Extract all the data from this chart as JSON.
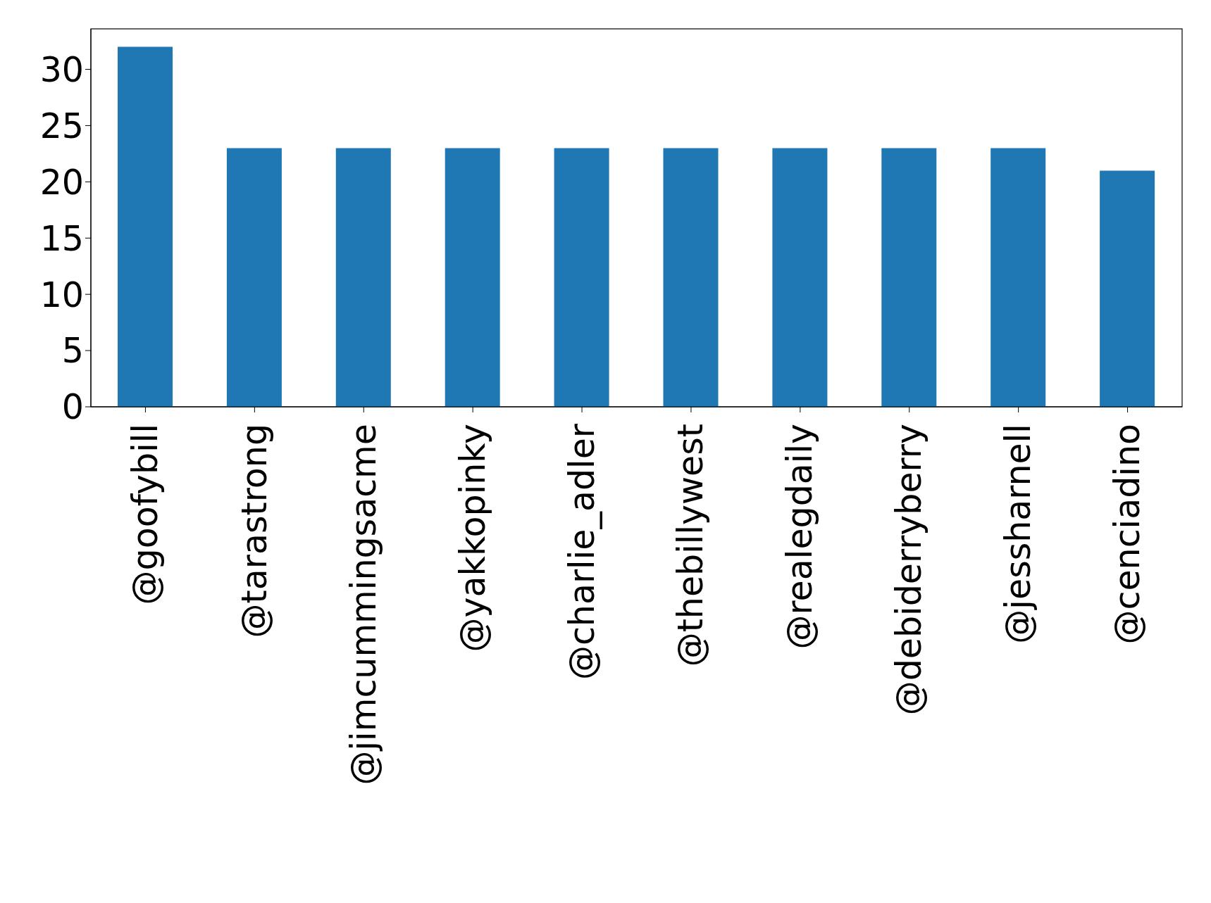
{
  "chart_data": {
    "type": "bar",
    "categories": [
      "@goofybill",
      "@tarastrong",
      "@jimcummingsacme",
      "@yakkopinky",
      "@charlie_adler",
      "@thebillywest",
      "@realegdaily",
      "@debiderryberry",
      "@jessharnell",
      "@cenciadino"
    ],
    "values": [
      32,
      23,
      23,
      23,
      23,
      23,
      23,
      23,
      23,
      21
    ],
    "color": "#1f77b4",
    "ylim": [
      0,
      33.6
    ],
    "yticks": [
      0,
      5,
      10,
      15,
      20,
      25,
      30
    ],
    "grid": false,
    "legend": false
  }
}
